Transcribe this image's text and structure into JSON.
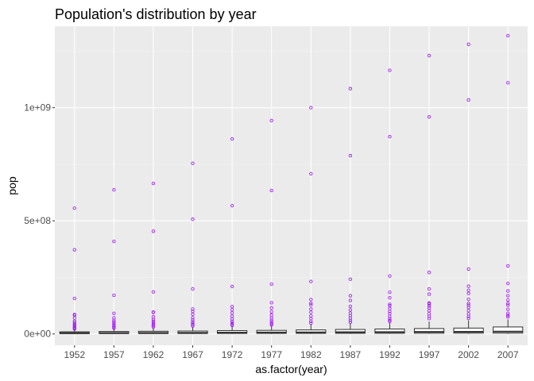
{
  "chart_data": {
    "type": "boxplot",
    "title": "Population's distribution by year",
    "xlabel": "as.factor(year)",
    "ylabel": "pop",
    "categories": [
      "1952",
      "1957",
      "1962",
      "1967",
      "1972",
      "1977",
      "1982",
      "1987",
      "1992",
      "1997",
      "2002",
      "2007"
    ],
    "ylim": [
      -50000000.0,
      1360000000.0
    ],
    "y_ticks": [
      {
        "value": 0,
        "label": "0e+00"
      },
      {
        "value": 500000000,
        "label": "5e+08"
      },
      {
        "value": 1000000000,
        "label": "1e+09"
      }
    ],
    "boxes": [
      {
        "year": "1952",
        "q1": 1400000.0,
        "median": 3900000.0,
        "q3": 9500000.0,
        "whisker_low": 60000.0,
        "whisker_high": 21000000.0,
        "outliers": [
          556000000.0,
          372000000.0,
          157000000.0,
          86000000.0,
          82000000.0,
          70000000.0,
          56000000.0,
          50000000.0,
          42000000.0,
          37000000.0,
          33000000.0,
          28000000.0,
          25000000.0,
          22000000.0
        ]
      },
      {
        "year": "1957",
        "q1": 1600000.0,
        "median": 4400000.0,
        "q3": 11000000.0,
        "whisker_low": 70000.0,
        "whisker_high": 24000000.0,
        "outliers": [
          637000000.0,
          409000000.0,
          171000000.0,
          91000000.0,
          71000000.0,
          60000000.0,
          53000000.0,
          45000000.0,
          38000000.0,
          33000000.0,
          28000000.0,
          26000000.0
        ]
      },
      {
        "year": "1962",
        "q1": 1800000.0,
        "median": 4800000.0,
        "q3": 12000000.0,
        "whisker_low": 76000.0,
        "whisker_high": 27000000.0,
        "outliers": [
          665000000.0,
          454000000.0,
          186000000.0,
          95000000.0,
          97000000.0,
          76000000.0,
          64000000.0,
          56000000.0,
          48000000.0,
          41000000.0,
          36000000.0,
          31000000.0
        ]
      },
      {
        "year": "1967",
        "q1": 2000000.0,
        "median": 5200000.0,
        "q3": 13000000.0,
        "whisker_low": 85000.0,
        "whisker_high": 30000000.0,
        "outliers": [
          754000000.0,
          507000000.0,
          199000000.0,
          110000000.0,
          100000000.0,
          87000000.0,
          72000000.0,
          62000000.0,
          53000000.0,
          46000000.0,
          40000000.0,
          35000000.0
        ]
      },
      {
        "year": "1972",
        "q1": 2300000.0,
        "median": 6000000.0,
        "q3": 15000000.0,
        "whisker_low": 90000.0,
        "whisker_high": 34000000.0,
        "outliers": [
          862000000.0,
          567000000.0,
          210000000.0,
          121000000.0,
          107000000.0,
          93000000.0,
          78000000.0,
          66000000.0,
          56000000.0,
          48000000.0,
          42000000.0,
          38000000.0
        ]
      },
      {
        "year": "1977",
        "q1": 2500000.0,
        "median": 6500000.0,
        "q3": 16000000.0,
        "whisker_low": 95000.0,
        "whisker_high": 37000000.0,
        "outliers": [
          943000000.0,
          634000000.0,
          220000000.0,
          138000000.0,
          115000000.0,
          98000000.0,
          83000000.0,
          71000000.0,
          61000000.0,
          53000000.0,
          45000000.0,
          40000000.0
        ]
      },
      {
        "year": "1982",
        "q1": 2700000.0,
        "median": 7000000.0,
        "q3": 18000000.0,
        "whisker_low": 100000.0,
        "whisker_high": 42000000.0,
        "outliers": [
          1000000000.0,
          708000000.0,
          232000000.0,
          152000000.0,
          136000000.0,
          128000000.0,
          110000000.0,
          96000000.0,
          80000000.0,
          68000000.0,
          56000000.0,
          48000000.0
        ]
      },
      {
        "year": "1987",
        "q1": 2900000.0,
        "median": 7800000.0,
        "q3": 20000000.0,
        "whisker_low": 110000.0,
        "whisker_high": 46000000.0,
        "outliers": [
          1084000000.0,
          788000000.0,
          242000000.0,
          169000000.0,
          148000000.0,
          122000000.0,
          106000000.0,
          92000000.0,
          81000000.0,
          70000000.0,
          60000000.0,
          52000000.0
        ]
      },
      {
        "year": "1992",
        "q1": 3000000.0,
        "median": 8300000.0,
        "q3": 22000000.0,
        "whisker_low": 120000.0,
        "whisker_high": 50000000.0,
        "outliers": [
          1165000000.0,
          872000000.0,
          256000000.0,
          184000000.0,
          160000000.0,
          131000000.0,
          125000000.0,
          112000000.0,
          100000000.0,
          90000000.0,
          78000000.0,
          68000000.0,
          60000000.0,
          55000000.0
        ]
      },
      {
        "year": "1997",
        "q1": 3200000.0,
        "median": 9000000.0,
        "q3": 24000000.0,
        "whisker_low": 130000.0,
        "whisker_high": 55000000.0,
        "outliers": [
          1230000000.0,
          959000000.0,
          272000000.0,
          199000000.0,
          176000000.0,
          137000000.0,
          133000000.0,
          124000000.0,
          115000000.0,
          103000000.0,
          90000000.0,
          78000000.0,
          68000000.0
        ]
      },
      {
        "year": "2002",
        "q1": 3400000.0,
        "median": 9500000.0,
        "q3": 26000000.0,
        "whisker_low": 140000.0,
        "whisker_high": 60000000.0,
        "outliers": [
          1280000000.0,
          1034000000.0,
          287000000.0,
          211000000.0,
          193000000.0,
          179000000.0,
          153000000.0,
          135000000.0,
          127000000.0,
          117000000.0,
          103000000.0,
          89000000.0,
          78000000.0,
          69000000.0
        ]
      },
      {
        "year": "2007",
        "q1": 3600000.0,
        "median": 10500000.0,
        "q3": 31000000.0,
        "whisker_low": 160000.0,
        "whisker_high": 64000000.0,
        "outliers": [
          1318000000.0,
          1110000000.0,
          301000000.0,
          223000000.0,
          190000000.0,
          169000000.0,
          150000000.0,
          135000000.0,
          127000000.0,
          109000000.0,
          91000000.0,
          82000000.0,
          75000000.0
        ]
      }
    ],
    "grid": true,
    "legend": "none",
    "colors": {
      "panel_background": "#ebebeb",
      "grid_major": "#ffffff",
      "grid_minor": "#f5f5f5",
      "box_fill": "#ffffff",
      "box_line": "#333333",
      "outlier": "#a020f0",
      "tick_label": "#4d4d4d"
    }
  }
}
